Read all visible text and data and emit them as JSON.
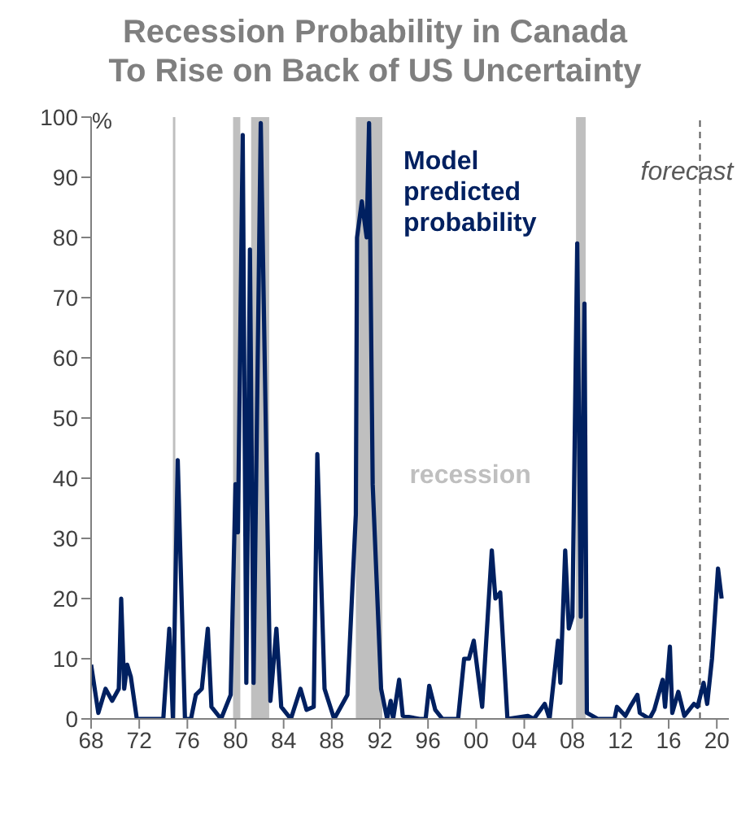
{
  "chart_data": {
    "type": "line",
    "title": "Recession Probability in Canada\nTo Rise on Back of US Uncertainty",
    "ylabel": "%",
    "series": [
      {
        "name": "Model predicted probability",
        "color": "#002060",
        "x": [
          1968.0,
          1968.6,
          1969.2,
          1969.75,
          1970.3,
          1970.5,
          1970.75,
          1971.0,
          1971.3,
          1971.8,
          1974.0,
          1974.5,
          1974.8,
          1975.2,
          1975.8,
          1976.3,
          1976.7,
          1977.2,
          1977.7,
          1978.0,
          1978.8,
          1979.6,
          1980.0,
          1980.2,
          1980.6,
          1980.9,
          1981.2,
          1981.5,
          1982.1,
          1982.9,
          1983.4,
          1983.8,
          1984.6,
          1985.4,
          1985.9,
          1986.5,
          1986.8,
          1987.4,
          1988.2,
          1989.3,
          1990.0,
          1990.1,
          1990.5,
          1990.9,
          1991.1,
          1991.4,
          1992.1,
          1992.6,
          1992.9,
          1993.1,
          1993.6,
          1993.9,
          1995.3,
          1995.8,
          1996.1,
          1996.6,
          1997.2,
          1998.5,
          1999.0,
          1999.4,
          1999.8,
          2000.5,
          2001.3,
          2001.6,
          2002.0,
          2002.6,
          2004.3,
          2004.8,
          2005.7,
          2006.1,
          2006.8,
          2007.0,
          2007.4,
          2007.7,
          2008.0,
          2008.4,
          2008.7,
          2009.0,
          2009.2,
          2010.1,
          2011.5,
          2011.7,
          2012.4,
          2012.8,
          2013.4,
          2013.6,
          2014.4,
          2014.8,
          2015.5,
          2015.7,
          2016.1,
          2016.3,
          2016.8,
          2017.3,
          2018.1,
          2018.4,
          2018.9,
          2019.2,
          2019.6,
          2020.1,
          2020.4
        ],
        "values": [
          9,
          1,
          5,
          3,
          5,
          20,
          5,
          9,
          7,
          0,
          0,
          15,
          0,
          43,
          0,
          0,
          4,
          5,
          15,
          2,
          0,
          4,
          39,
          31,
          97,
          6,
          78,
          6,
          99,
          3,
          15,
          2,
          0,
          5,
          1.5,
          2,
          44,
          5,
          0,
          4,
          34,
          80,
          86,
          80,
          99,
          39,
          5,
          0,
          3,
          0,
          6.5,
          0.5,
          0,
          0,
          5.5,
          1.5,
          0,
          0,
          10,
          10,
          13,
          2,
          28,
          20,
          21,
          0,
          0.5,
          0,
          2.5,
          0,
          13,
          6,
          28,
          15,
          17,
          79,
          17,
          69,
          1,
          0,
          0,
          2,
          0.5,
          2,
          4,
          1,
          0,
          1.5,
          6.5,
          2,
          12,
          1,
          4.5,
          0.5,
          2.5,
          2,
          6,
          2.5,
          10,
          25,
          20
        ]
      }
    ],
    "xlim": [
      1968,
      2021
    ],
    "ylim": [
      0,
      100
    ],
    "xticks": [
      {
        "value": 1968,
        "label": "68"
      },
      {
        "value": 1972,
        "label": "72"
      },
      {
        "value": 1976,
        "label": "76"
      },
      {
        "value": 1980,
        "label": "80"
      },
      {
        "value": 1984,
        "label": "84"
      },
      {
        "value": 1988,
        "label": "88"
      },
      {
        "value": 1992,
        "label": "92"
      },
      {
        "value": 1996,
        "label": "96"
      },
      {
        "value": 2000,
        "label": "00"
      },
      {
        "value": 2004,
        "label": "04"
      },
      {
        "value": 2008,
        "label": "08"
      },
      {
        "value": 2012,
        "label": "12"
      },
      {
        "value": 2016,
        "label": "16"
      },
      {
        "value": 2020,
        "label": "20"
      }
    ],
    "yticks": [
      0,
      10,
      20,
      30,
      40,
      50,
      60,
      70,
      80,
      90,
      100
    ],
    "bands": [
      {
        "axis": "x",
        "from": 1974.8,
        "to": 1975.0,
        "color": "#bfbfbf"
      },
      {
        "axis": "x",
        "from": 1979.8,
        "to": 1980.4,
        "color": "#bfbfbf"
      },
      {
        "axis": "x",
        "from": 1981.3,
        "to": 1982.8,
        "color": "#bfbfbf"
      },
      {
        "axis": "x",
        "from": 1990.0,
        "to": 1992.2,
        "color": "#bfbfbf",
        "label": "recession"
      },
      {
        "axis": "x",
        "from": 2008.3,
        "to": 2009.1,
        "color": "#bfbfbf"
      }
    ],
    "ref_lines": [
      {
        "axis": "x",
        "value": 2018.6,
        "label": "forecast",
        "color": "#595959",
        "line_style": "dashed"
      }
    ],
    "grid": false,
    "legend": false,
    "marker": "none",
    "line_style": "solid"
  }
}
